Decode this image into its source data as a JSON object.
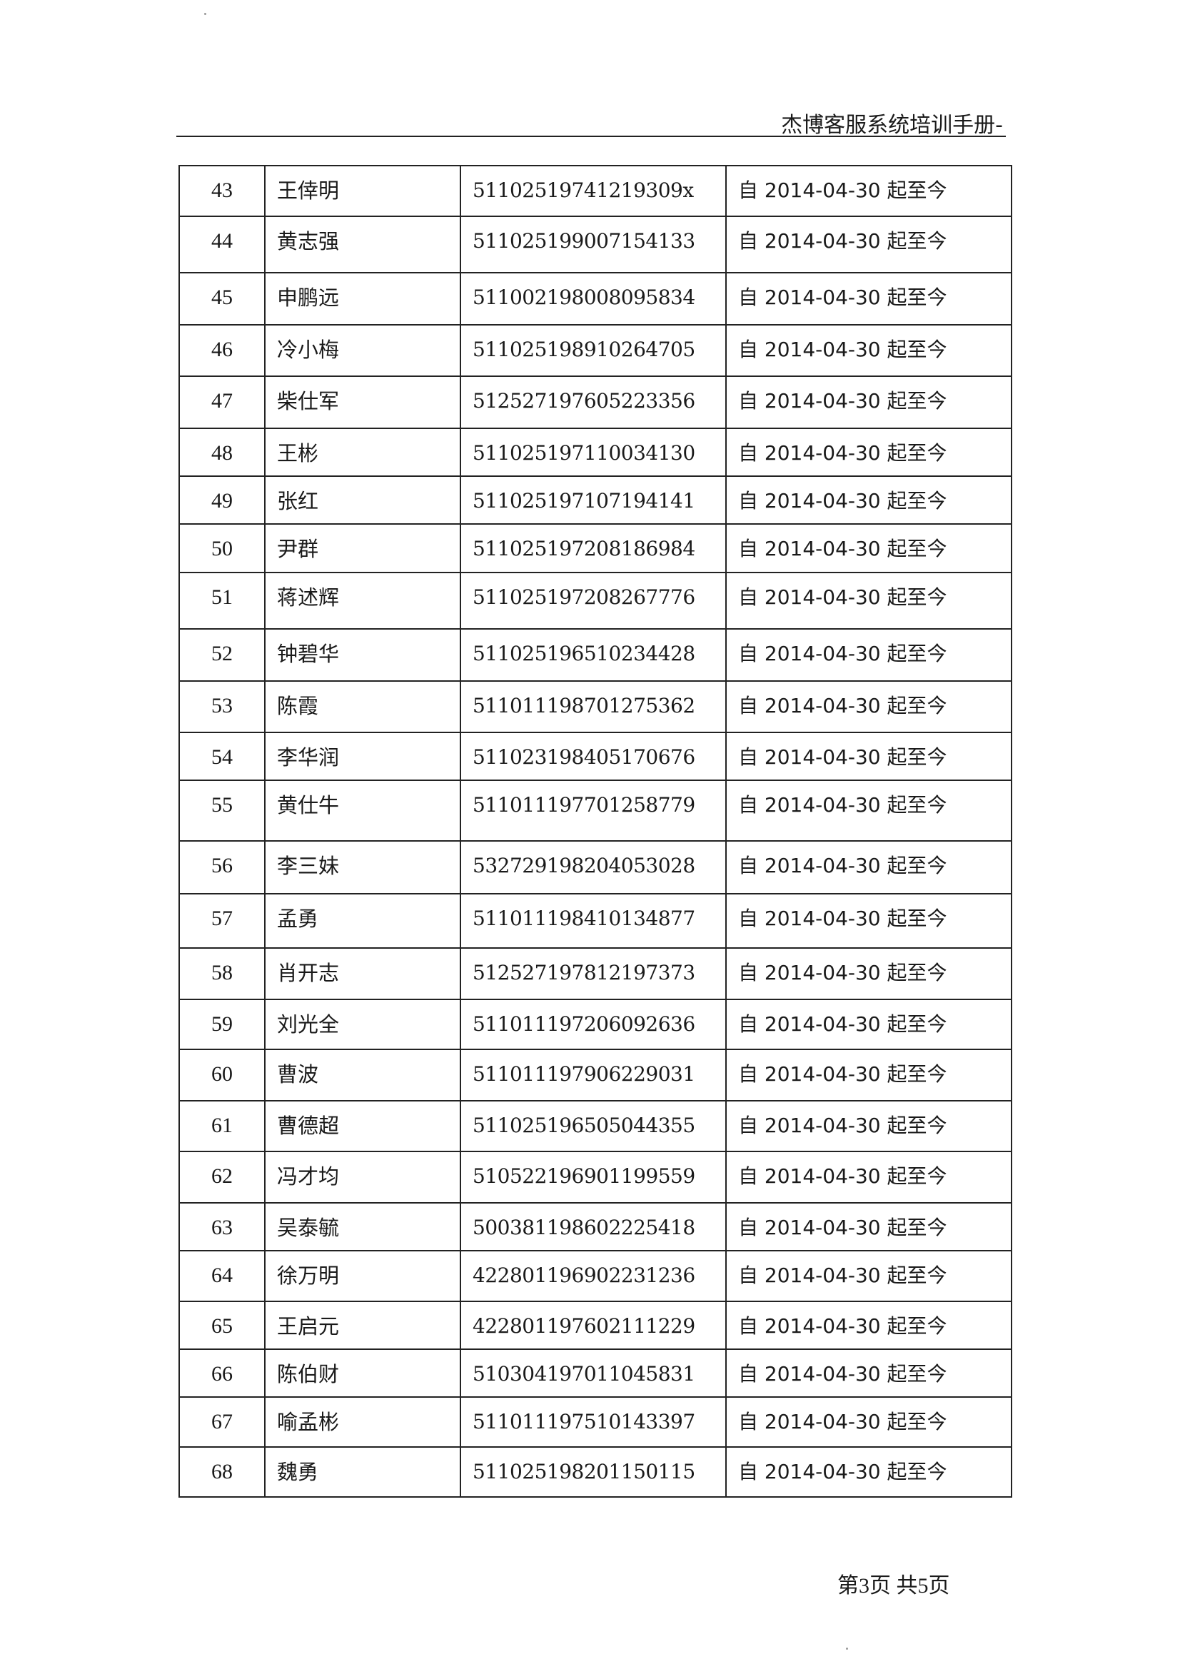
{
  "header": {
    "title": "杰博客服系统培训手册-"
  },
  "table": {
    "rows": [
      {
        "no": "43",
        "name": "王倖明",
        "id": "51102519741219309x",
        "period": "自 2014-04-30 起至今"
      },
      {
        "no": "44",
        "name": "黄志强",
        "id": "511025199007154133",
        "period": "自 2014-04-30 起至今"
      },
      {
        "no": "45",
        "name": "申鹏远",
        "id": "511002198008095834",
        "period": "自 2014-04-30 起至今"
      },
      {
        "no": "46",
        "name": "冷小梅",
        "id": "511025198910264705",
        "period": "自 2014-04-30 起至今"
      },
      {
        "no": "47",
        "name": "柴仕军",
        "id": "512527197605223356",
        "period": "自 2014-04-30 起至今"
      },
      {
        "no": "48",
        "name": "王彬",
        "id": "511025197110034130",
        "period": "自 2014-04-30 起至今"
      },
      {
        "no": "49",
        "name": "张红",
        "id": "511025197107194141",
        "period": "自 2014-04-30 起至今"
      },
      {
        "no": "50",
        "name": "尹群",
        "id": "511025197208186984",
        "period": "自 2014-04-30 起至今"
      },
      {
        "no": "51",
        "name": "蒋述辉",
        "id": "511025197208267776",
        "period": "自 2014-04-30 起至今"
      },
      {
        "no": "52",
        "name": "钟碧华",
        "id": "511025196510234428",
        "period": "自 2014-04-30 起至今"
      },
      {
        "no": "53",
        "name": "陈霞",
        "id": "511011198701275362",
        "period": "自 2014-04-30 起至今"
      },
      {
        "no": "54",
        "name": "李华润",
        "id": "511023198405170676",
        "period": "自 2014-04-30 起至今"
      },
      {
        "no": "55",
        "name": "黄仕牛",
        "id": "511011197701258779",
        "period": "自 2014-04-30 起至今"
      },
      {
        "no": "56",
        "name": "李三妹",
        "id": "532729198204053028",
        "period": "自 2014-04-30 起至今"
      },
      {
        "no": "57",
        "name": "孟勇",
        "id": "511011198410134877",
        "period": "自 2014-04-30 起至今"
      },
      {
        "no": "58",
        "name": "肖开志",
        "id": "512527197812197373",
        "period": "自 2014-04-30 起至今"
      },
      {
        "no": "59",
        "name": "刘光全",
        "id": "511011197206092636",
        "period": "自 2014-04-30 起至今"
      },
      {
        "no": "60",
        "name": "曹波",
        "id": "511011197906229031",
        "period": "自 2014-04-30 起至今"
      },
      {
        "no": "61",
        "name": "曹德超",
        "id": "511025196505044355",
        "period": "自 2014-04-30 起至今"
      },
      {
        "no": "62",
        "name": "冯才均",
        "id": "510522196901199559",
        "period": "自 2014-04-30 起至今"
      },
      {
        "no": "63",
        "name": "吴泰毓",
        "id": "500381198602225418",
        "period": "自 2014-04-30 起至今"
      },
      {
        "no": "64",
        "name": "徐万明",
        "id": "422801196902231236",
        "period": "自 2014-04-30 起至今"
      },
      {
        "no": "65",
        "name": "王启元",
        "id": "422801197602111229",
        "period": "自 2014-04-30 起至今"
      },
      {
        "no": "66",
        "name": "陈伯财",
        "id": "510304197011045831",
        "period": "自 2014-04-30 起至今"
      },
      {
        "no": "67",
        "name": "喻孟彬",
        "id": "511011197510143397",
        "period": "自 2014-04-30 起至今"
      },
      {
        "no": "68",
        "name": "魏勇",
        "id": "511025198201150115",
        "period": "自 2014-04-30 起至今"
      }
    ]
  },
  "footer": {
    "page_info": "第3页  共5页"
  }
}
